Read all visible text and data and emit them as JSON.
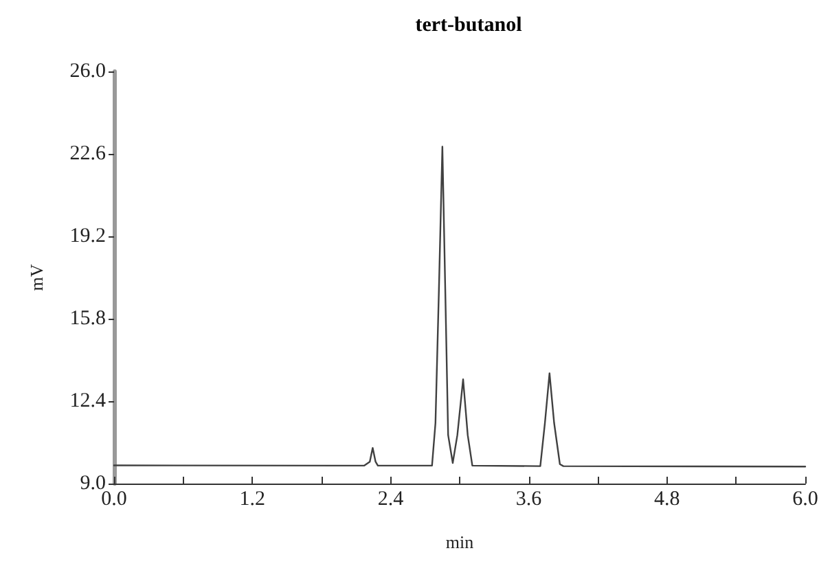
{
  "chart_data": {
    "type": "line",
    "title": "tert-butanol",
    "xlabel": "min",
    "ylabel": "mV",
    "x": [
      0,
      2.17,
      2.22,
      2.245,
      2.27,
      2.29,
      2.76,
      2.79,
      2.82,
      2.85,
      2.875,
      2.9,
      2.94,
      2.98,
      3.03,
      3.07,
      3.11,
      3.7,
      3.74,
      3.78,
      3.82,
      3.87,
      3.9,
      6.0
    ],
    "series": [
      {
        "color": "#404040",
        "values": [
          9.75,
          9.74,
          9.9,
          10.47,
          9.9,
          9.74,
          9.74,
          11.5,
          17,
          22.9,
          17,
          11,
          9.85,
          11,
          13.3,
          11,
          9.74,
          9.72,
          11.5,
          13.55,
          11.5,
          9.8,
          9.72,
          9.7
        ]
      }
    ],
    "xlim": [
      0,
      6
    ],
    "xticks": [
      {
        "value": 0,
        "label": "0.0"
      },
      {
        "value": 0.6,
        "label": null
      },
      {
        "value": 1.2,
        "label": "1.2"
      },
      {
        "value": 1.8,
        "label": null
      },
      {
        "value": 2.4,
        "label": "2.4"
      },
      {
        "value": 3.0,
        "label": null
      },
      {
        "value": 3.6,
        "label": "3.6"
      },
      {
        "value": 4.2,
        "label": null
      },
      {
        "value": 4.8,
        "label": "4.8"
      },
      {
        "value": 5.4,
        "label": null
      },
      {
        "value": 6,
        "label": "6.0"
      }
    ],
    "ylim": [
      9,
      26
    ],
    "yticks": [
      {
        "value": 9,
        "label": "9.0"
      },
      {
        "value": 12.4,
        "label": "12.4"
      },
      {
        "value": 15.8,
        "label": "15.8"
      },
      {
        "value": 19.2,
        "label": "19.2"
      },
      {
        "value": 22.6,
        "label": "22.6"
      },
      {
        "value": 26,
        "label": "26.0"
      }
    ],
    "grid": false,
    "marker": "none",
    "line_style": "solid"
  }
}
